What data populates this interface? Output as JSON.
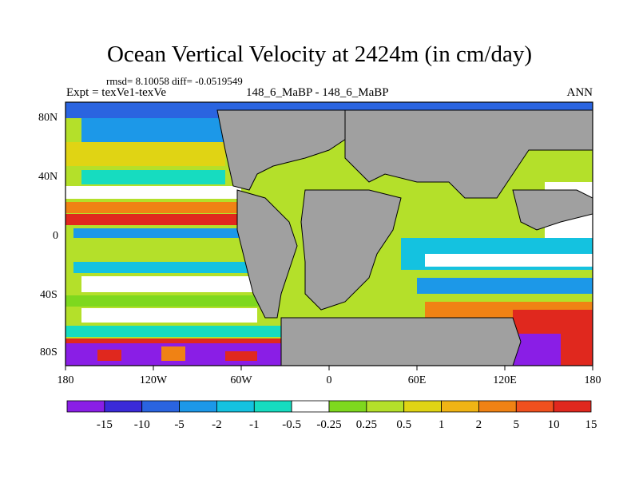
{
  "title": "Ocean Vertical Velocity at 2424m (in cm/day)",
  "stats": "rmsd= 8.10058 diff= -0.0519549",
  "expt": "Expt = texVe1-texVe",
  "center_label": "148_6_MaBP - 148_6_MaBP",
  "season": "ANN",
  "x_ticks": [
    "180",
    "120W",
    "60W",
    "0",
    "60E",
    "120E",
    "180"
  ],
  "y_ticks": [
    "80N",
    "40N",
    "0",
    "40S",
    "80S"
  ],
  "colorbar": {
    "labels": [
      "-15",
      "-10",
      "-5",
      "-2",
      "-1",
      "-0.5",
      "-0.25",
      "0.25",
      "0.5",
      "1",
      "2",
      "5",
      "10",
      "15"
    ],
    "colors": [
      "#8a1ee6",
      "#3a2ad8",
      "#2a64e0",
      "#1c98e8",
      "#14c2e0",
      "#16dcc0",
      "#ffffff",
      "#7ed81e",
      "#b4e02a",
      "#e0d414",
      "#f0b414",
      "#f08214",
      "#f0501e",
      "#e0281e"
    ]
  },
  "land_color": "#a0a0a0"
}
